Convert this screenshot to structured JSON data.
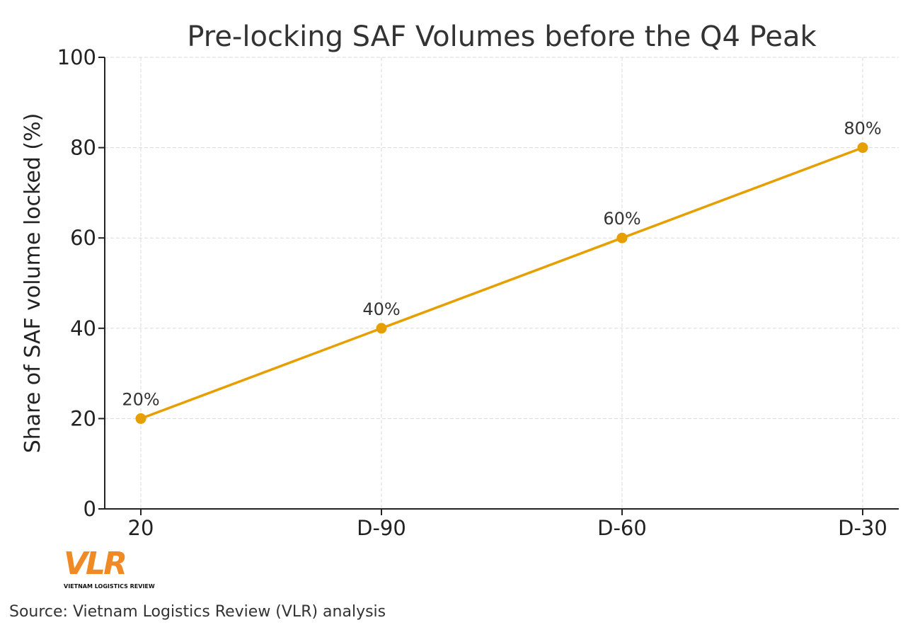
{
  "chart_data": {
    "type": "line",
    "title": "Pre-locking SAF Volumes before the Q4 Peak",
    "xlabel": "",
    "ylabel": "Share of SAF volume locked (%)",
    "categories": [
      "20",
      "D-90",
      "D-60",
      "D-30"
    ],
    "series": [
      {
        "values": [
          20,
          40,
          60,
          80
        ],
        "data_labels": [
          "20%",
          "40%",
          "60%",
          "80%"
        ],
        "color": "#E69F00"
      }
    ],
    "ylim": [
      0,
      100
    ],
    "yticks": [
      "0",
      "20",
      "40",
      "60",
      "80",
      "100"
    ],
    "grid": true
  },
  "logo": {
    "text": "VLR",
    "subtitle": "VIETNAM LOGISTICS REVIEW"
  },
  "source": "Source: Vietnam Logistics Review (VLR) analysis"
}
